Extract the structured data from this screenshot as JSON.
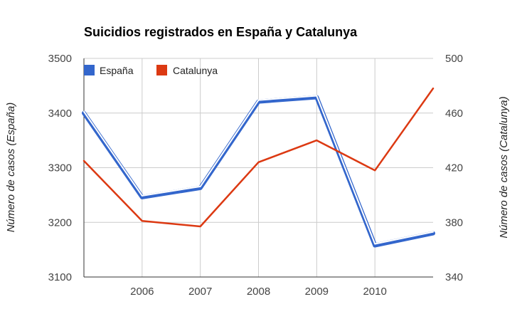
{
  "chart_data": {
    "type": "line",
    "title": "Suicidios registrados en España y Catalunya",
    "x": [
      2005,
      2006,
      2007,
      2008,
      2009,
      2010,
      2011
    ],
    "x_tick_labels": [
      "2006",
      "2007",
      "2008",
      "2009",
      "2010"
    ],
    "x_tick_values": [
      2006,
      2007,
      2008,
      2009,
      2010
    ],
    "xlim": [
      2005,
      2011
    ],
    "grid": true,
    "legend_position": "top-left",
    "y_left": {
      "label": "Número de casos (España)",
      "range": [
        3100,
        3500
      ],
      "ticks": [
        3100,
        3200,
        3300,
        3400,
        3500
      ],
      "tick_labels": [
        "3100",
        "3200",
        "3300",
        "3400",
        "3500"
      ]
    },
    "y_right": {
      "label": "Número de casos (Catalunya)",
      "range": [
        340,
        500
      ],
      "ticks": [
        340,
        380,
        420,
        460,
        500
      ],
      "tick_labels": [
        "340",
        "380",
        "420",
        "460",
        "500"
      ]
    },
    "series": [
      {
        "name": "España",
        "axis": "left",
        "color": "#3366cc",
        "values": [
          3400,
          3246,
          3263,
          3421,
          3429,
          3158,
          3180
        ]
      },
      {
        "name": "Catalunya",
        "axis": "right",
        "color": "#dc3912",
        "values": [
          425,
          381,
          377,
          424,
          440,
          418,
          478
        ]
      }
    ]
  }
}
